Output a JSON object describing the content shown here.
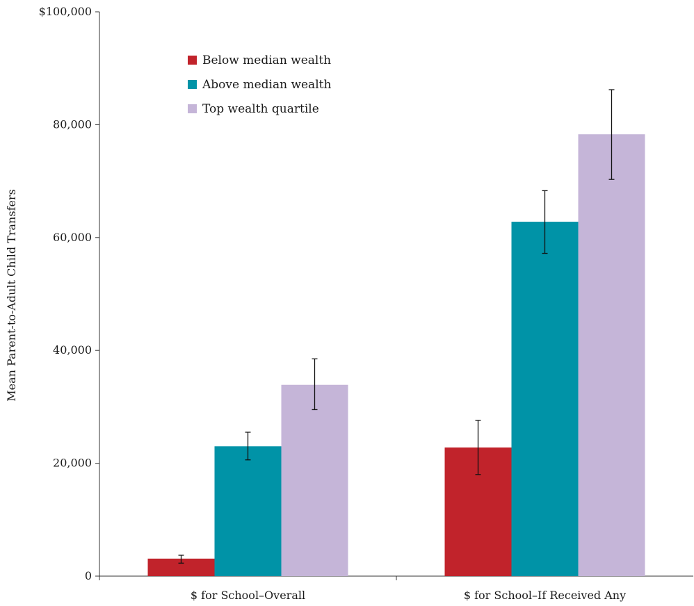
{
  "chart_data": {
    "type": "bar",
    "title": "",
    "xlabel": "",
    "ylabel": "Mean Parent-to-Adult Child Transfers",
    "ylim": [
      0,
      100000
    ],
    "yticks": [
      0,
      20000,
      40000,
      60000,
      80000,
      100000
    ],
    "ytick_labels": [
      "0",
      "20,000",
      "40,000",
      "60,000",
      "80,000",
      "$100,000"
    ],
    "categories": [
      "$ for School–Overall",
      "$ for School–If Received Any"
    ],
    "series": [
      {
        "name": "Below median wealth",
        "color": "#c1232b",
        "values": [
          3100,
          22800
        ],
        "error_low": [
          2300,
          18000
        ],
        "error_high": [
          3700,
          27600
        ]
      },
      {
        "name": "Above median wealth",
        "color": "#0093a7",
        "values": [
          23000,
          62800
        ],
        "error_low": [
          20600,
          57200
        ],
        "error_high": [
          25500,
          68300
        ]
      },
      {
        "name": "Top wealth quartile",
        "color": "#c5b5d8",
        "values": [
          33900,
          78300
        ],
        "error_low": [
          29500,
          70300
        ],
        "error_high": [
          38500,
          86200
        ]
      }
    ],
    "legend_position": "top-left",
    "grid": false,
    "error_bars": true
  }
}
